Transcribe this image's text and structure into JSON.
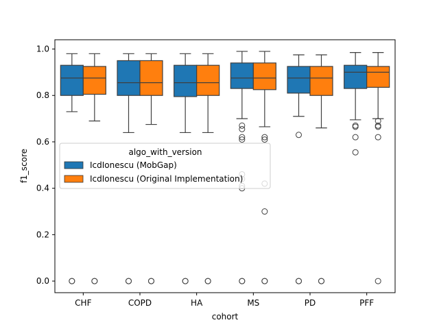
{
  "chart_data": {
    "type": "box",
    "title": "",
    "xlabel": "cohort",
    "ylabel": "f1_score",
    "ylim": [
      -0.05,
      1.04
    ],
    "yticks": [
      0.0,
      0.2,
      0.4,
      0.6,
      0.8,
      1.0
    ],
    "ytick_labels": [
      "0.0",
      "0.2",
      "0.4",
      "0.6",
      "0.8",
      "1.0"
    ],
    "grid": false,
    "categories": [
      "CHF",
      "COPD",
      "HA",
      "MS",
      "PD",
      "PFF"
    ],
    "legend": {
      "title": "algo_with_version",
      "placement": "center-left"
    },
    "series": [
      {
        "name": "IcdIonescu (MobGap)",
        "color": "#1f77b4",
        "boxes": [
          {
            "whislo": 0.73,
            "q1": 0.8,
            "med": 0.875,
            "q3": 0.93,
            "whishi": 0.98,
            "fliers": [
              0.0,
              0.0
            ]
          },
          {
            "whislo": 0.64,
            "q1": 0.8,
            "med": 0.855,
            "q3": 0.95,
            "whishi": 0.98,
            "fliers": [
              0.0,
              0.0
            ]
          },
          {
            "whislo": 0.64,
            "q1": 0.795,
            "med": 0.855,
            "q3": 0.93,
            "whishi": 0.98,
            "fliers": [
              0.0,
              0.0
            ]
          },
          {
            "whislo": 0.7,
            "q1": 0.83,
            "med": 0.875,
            "q3": 0.94,
            "whishi": 0.99,
            "fliers": [
              0.67,
              0.655,
              0.62,
              0.61,
              0.46,
              0.44,
              0.41,
              0.4,
              0.0,
              0.0
            ]
          },
          {
            "whislo": 0.71,
            "q1": 0.81,
            "med": 0.875,
            "q3": 0.925,
            "whishi": 0.975,
            "fliers": [
              0.63,
              0.0,
              0.0
            ]
          },
          {
            "whislo": 0.695,
            "q1": 0.83,
            "med": 0.9,
            "q3": 0.93,
            "whishi": 0.985,
            "fliers": [
              0.67,
              0.665,
              0.62,
              0.555
            ]
          }
        ]
      },
      {
        "name": "IcdIonescu (Original Implementation)",
        "color": "#ff7f0e",
        "boxes": [
          {
            "whislo": 0.69,
            "q1": 0.805,
            "med": 0.875,
            "q3": 0.925,
            "whishi": 0.98,
            "fliers": [
              0.0,
              0.0
            ]
          },
          {
            "whislo": 0.675,
            "q1": 0.8,
            "med": 0.855,
            "q3": 0.95,
            "whishi": 0.98,
            "fliers": [
              0.0,
              0.0
            ]
          },
          {
            "whislo": 0.64,
            "q1": 0.8,
            "med": 0.855,
            "q3": 0.93,
            "whishi": 0.98,
            "fliers": [
              0.0,
              0.0
            ]
          },
          {
            "whislo": 0.665,
            "q1": 0.825,
            "med": 0.875,
            "q3": 0.94,
            "whishi": 0.99,
            "fliers": [
              0.62,
              0.61,
              0.42,
              0.3,
              0.0,
              0.0
            ]
          },
          {
            "whislo": 0.66,
            "q1": 0.8,
            "med": 0.875,
            "q3": 0.925,
            "whishi": 0.975,
            "fliers": [
              0.0,
              0.0
            ]
          },
          {
            "whislo": 0.7,
            "q1": 0.835,
            "med": 0.9,
            "q3": 0.925,
            "whishi": 0.985,
            "fliers": [
              0.69,
              0.67,
              0.665,
              0.62,
              0.0
            ]
          }
        ]
      }
    ]
  }
}
